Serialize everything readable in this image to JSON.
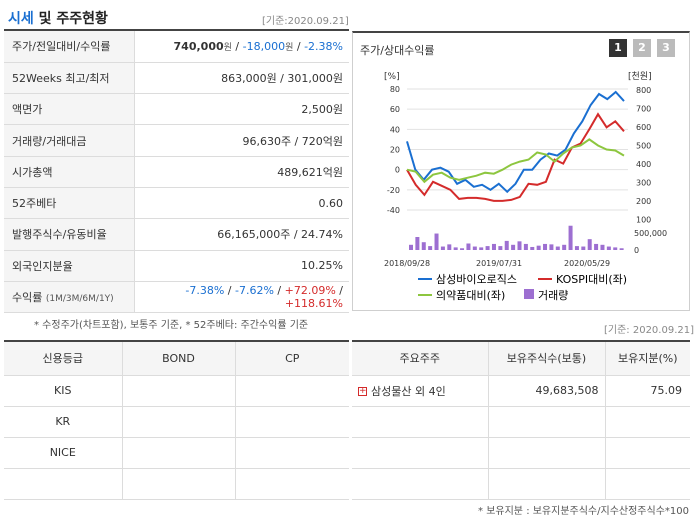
{
  "header": {
    "title_highlight": "시세",
    "title_rest": " 및 주주현황",
    "date": "[기준:2020.09.21]"
  },
  "quote": [
    {
      "label": "주가/전일대비/수익률",
      "value_main": "740,000",
      "unit1": "원",
      "sep": " / ",
      "change": "-18,000",
      "unit2": "원",
      "pct": "-2.38%"
    },
    {
      "label": "52Weeks 최고/최저",
      "value": "863,000원 / 301,000원"
    },
    {
      "label": "액면가",
      "value": "2,500원"
    },
    {
      "label": "거래량/거래대금",
      "value": "96,630주 / 720억원"
    },
    {
      "label": "시가총액",
      "value": "489,621억원"
    },
    {
      "label": "52주베타",
      "value": "0.60"
    },
    {
      "label": "발행주식수/유동비율",
      "value": "66,165,000주 / 24.74%"
    },
    {
      "label": "외국인지분율",
      "value": "10.25%"
    },
    {
      "label": "수익률",
      "label_sub": "(1M/3M/6M/1Y)",
      "r1": "-7.38%",
      "r2": "-7.62%",
      "r3": "+72.09%",
      "r4": "+118.61%"
    }
  ],
  "footnote": "* 수정주가(차트포함), 보통주 기준, * 52주베타: 주간수익률 기준",
  "chart_panel": {
    "title": "주가/상대수익률",
    "pages": [
      "1",
      "2",
      "3"
    ],
    "active_page": 0
  },
  "chart_data": {
    "type": "line",
    "y_left_unit": "[%]",
    "y_right_unit": "[천원]",
    "y_left_ticks": [
      "80",
      "60",
      "40",
      "20",
      "0",
      "-20",
      "-40"
    ],
    "y_right_ticks": [
      "800",
      "700",
      "600",
      "500",
      "400",
      "300",
      "200",
      "100"
    ],
    "volume_tick": "500,000",
    "volume_zero": "0",
    "x_ticks": [
      "2018/09/28",
      "2019/07/31",
      "2020/05/29"
    ],
    "ylim_left": [
      -40,
      80
    ],
    "series": [
      {
        "name": "삼성바이오로직스",
        "color": "#1a6fd1",
        "values": [
          28,
          0,
          -10,
          0,
          2,
          -2,
          -14,
          -10,
          -17,
          -15,
          -20,
          -14,
          -22,
          -14,
          0,
          0,
          10,
          16,
          14,
          20,
          36,
          48,
          64,
          75,
          70,
          77,
          68
        ]
      },
      {
        "name": "KOSPI대비(좌)",
        "color": "#d42b2b",
        "values": [
          0,
          -15,
          -25,
          -12,
          -16,
          -20,
          -29,
          -28,
          -28,
          -29,
          -31,
          -31,
          -30,
          -27,
          -14,
          -15,
          -12,
          10,
          6,
          22,
          26,
          40,
          55,
          42,
          48,
          38
        ]
      },
      {
        "name": "의약품대비(좌)",
        "color": "#8dc63f",
        "values": [
          0,
          -2,
          -12,
          -5,
          -3,
          -8,
          -10,
          -8,
          -6,
          -3,
          -4,
          0,
          5,
          8,
          10,
          17,
          15,
          8,
          16,
          22,
          24,
          30,
          24,
          20,
          19,
          14
        ]
      }
    ],
    "volume_legend": "거래량",
    "volume_color": "#9d6fd1",
    "volume": [
      120,
      300,
      180,
      90,
      380,
      80,
      130,
      60,
      40,
      150,
      80,
      60,
      90,
      140,
      90,
      210,
      120,
      200,
      140,
      70,
      100,
      140,
      130,
      80,
      120,
      560,
      90,
      80,
      250,
      140,
      120,
      80,
      60,
      40
    ]
  },
  "credit": {
    "headers": [
      "신용등급",
      "BOND",
      "CP"
    ],
    "rows": [
      [
        "KIS",
        "",
        ""
      ],
      [
        "KR",
        "",
        ""
      ],
      [
        "NICE",
        "",
        ""
      ],
      [
        "",
        "",
        ""
      ]
    ]
  },
  "holders": {
    "date": "[기준: 2020.09.21]",
    "headers": [
      "주요주주",
      "보유주식수(보통)",
      "보유지분(%)"
    ],
    "rows": [
      [
        "삼성물산 외 4인",
        "49,683,508",
        "75.09"
      ],
      [
        "",
        "",
        ""
      ],
      [
        "",
        "",
        ""
      ],
      [
        "",
        "",
        ""
      ]
    ]
  },
  "footnote2": "* 보유지분 : 보유지분주식수/지수산정주식수*100"
}
